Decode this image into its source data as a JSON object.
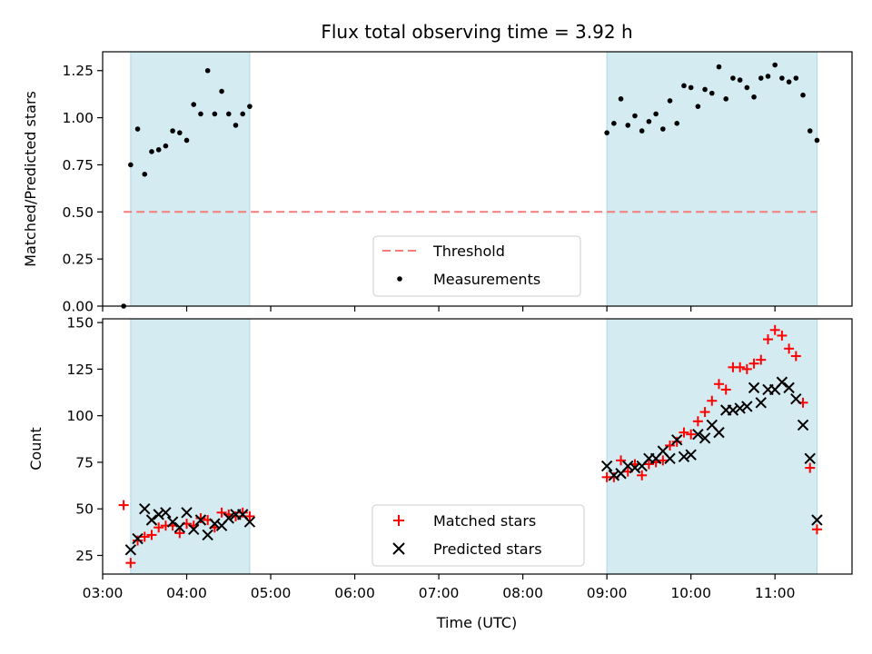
{
  "chart_data": [
    {
      "type": "scatter",
      "panel": "top",
      "title": "Flux total observing time = 3.92 h",
      "ylabel": "Matched/Predicted stars",
      "xlabel": "",
      "xlim": [
        "03:00",
        "11:55"
      ],
      "ylim": [
        0,
        1.35
      ],
      "yticks": [
        0,
        0.25,
        0.5,
        0.75,
        1.0,
        1.25
      ],
      "ytick_labels": [
        "0.00",
        "0.25",
        "0.50",
        "0.75",
        "1.00",
        "1.25"
      ],
      "shaded_intervals": [
        [
          "03:20",
          "04:45"
        ],
        [
          "09:00",
          "11:30"
        ]
      ],
      "shade_color": "#d4ebf1",
      "threshold": {
        "name": "Threshold",
        "value": 0.5,
        "from": "03:15",
        "to": "11:30",
        "color": "#f47c7c",
        "style": "dashed"
      },
      "series": [
        {
          "name": "Measurements",
          "marker": "dot",
          "color": "#000000",
          "points": [
            [
              "03:15",
              0.0
            ],
            [
              "03:20",
              0.75
            ],
            [
              "03:25",
              0.94
            ],
            [
              "03:30",
              0.7
            ],
            [
              "03:35",
              0.82
            ],
            [
              "03:40",
              0.83
            ],
            [
              "03:45",
              0.85
            ],
            [
              "03:50",
              0.93
            ],
            [
              "03:55",
              0.92
            ],
            [
              "04:00",
              0.88
            ],
            [
              "04:05",
              1.07
            ],
            [
              "04:10",
              1.02
            ],
            [
              "04:15",
              1.25
            ],
            [
              "04:20",
              1.02
            ],
            [
              "04:25",
              1.14
            ],
            [
              "04:30",
              1.02
            ],
            [
              "04:35",
              0.96
            ],
            [
              "04:40",
              1.02
            ],
            [
              "04:45",
              1.06
            ],
            [
              "09:00",
              0.92
            ],
            [
              "09:05",
              0.97
            ],
            [
              "09:10",
              1.1
            ],
            [
              "09:15",
              0.96
            ],
            [
              "09:20",
              1.01
            ],
            [
              "09:25",
              0.93
            ],
            [
              "09:30",
              0.98
            ],
            [
              "09:35",
              1.02
            ],
            [
              "09:40",
              0.94
            ],
            [
              "09:45",
              1.09
            ],
            [
              "09:50",
              0.97
            ],
            [
              "09:55",
              1.17
            ],
            [
              "10:00",
              1.16
            ],
            [
              "10:05",
              1.06
            ],
            [
              "10:10",
              1.15
            ],
            [
              "10:15",
              1.13
            ],
            [
              "10:20",
              1.27
            ],
            [
              "10:25",
              1.1
            ],
            [
              "10:30",
              1.21
            ],
            [
              "10:35",
              1.2
            ],
            [
              "10:40",
              1.16
            ],
            [
              "10:45",
              1.11
            ],
            [
              "10:50",
              1.21
            ],
            [
              "10:55",
              1.22
            ],
            [
              "11:00",
              1.28
            ],
            [
              "11:05",
              1.21
            ],
            [
              "11:10",
              1.19
            ],
            [
              "11:15",
              1.21
            ],
            [
              "11:20",
              1.12
            ],
            [
              "11:25",
              0.93
            ],
            [
              "11:30",
              0.88
            ]
          ]
        }
      ],
      "legend": {
        "placement": "lower-center",
        "entries": [
          "Threshold",
          "Measurements"
        ]
      }
    },
    {
      "type": "scatter",
      "panel": "bottom",
      "title": "",
      "ylabel": "Count",
      "xlabel": "Time (UTC)",
      "xlim": [
        "03:00",
        "11:55"
      ],
      "ylim": [
        15,
        152
      ],
      "yticks": [
        25,
        50,
        75,
        100,
        125,
        150
      ],
      "ytick_labels": [
        "25",
        "50",
        "75",
        "100",
        "125",
        "150"
      ],
      "xticks": [
        "03:00",
        "04:00",
        "05:00",
        "06:00",
        "07:00",
        "08:00",
        "09:00",
        "10:00",
        "11:00"
      ],
      "xtick_labels": [
        "03:00",
        "04:00",
        "05:00",
        "06:00",
        "07:00",
        "08:00",
        "09:00",
        "10:00",
        "11:00"
      ],
      "shaded_intervals": [
        [
          "03:20",
          "04:45"
        ],
        [
          "09:00",
          "11:30"
        ]
      ],
      "shade_color": "#d4ebf1",
      "series": [
        {
          "name": "Matched stars",
          "marker": "plus",
          "color": "#ff0000",
          "points": [
            [
              "03:15",
              52
            ],
            [
              "03:20",
              21
            ],
            [
              "03:25",
              33
            ],
            [
              "03:30",
              35
            ],
            [
              "03:35",
              36
            ],
            [
              "03:40",
              40
            ],
            [
              "03:45",
              41
            ],
            [
              "03:50",
              41
            ],
            [
              "03:55",
              37
            ],
            [
              "04:00",
              42
            ],
            [
              "04:05",
              41
            ],
            [
              "04:10",
              45
            ],
            [
              "04:15",
              44
            ],
            [
              "04:20",
              40
            ],
            [
              "04:25",
              48
            ],
            [
              "04:30",
              47
            ],
            [
              "04:35",
              46
            ],
            [
              "04:40",
              48
            ],
            [
              "04:45",
              46
            ],
            [
              "09:00",
              67
            ],
            [
              "09:05",
              67
            ],
            [
              "09:10",
              76
            ],
            [
              "09:15",
              70
            ],
            [
              "09:20",
              74
            ],
            [
              "09:25",
              68
            ],
            [
              "09:30",
              74
            ],
            [
              "09:35",
              75
            ],
            [
              "09:40",
              76
            ],
            [
              "09:45",
              84
            ],
            [
              "09:50",
              86
            ],
            [
              "09:55",
              91
            ],
            [
              "10:00",
              90
            ],
            [
              "10:05",
              97
            ],
            [
              "10:10",
              102
            ],
            [
              "10:15",
              108
            ],
            [
              "10:20",
              117
            ],
            [
              "10:25",
              114
            ],
            [
              "10:30",
              126
            ],
            [
              "10:35",
              126
            ],
            [
              "10:40",
              125
            ],
            [
              "10:45",
              128
            ],
            [
              "10:50",
              130
            ],
            [
              "10:55",
              141
            ],
            [
              "11:00",
              146
            ],
            [
              "11:05",
              143
            ],
            [
              "11:10",
              136
            ],
            [
              "11:15",
              132
            ],
            [
              "11:20",
              107
            ],
            [
              "11:25",
              72
            ],
            [
              "11:30",
              39
            ]
          ]
        },
        {
          "name": "Predicted stars",
          "marker": "x",
          "color": "#000000",
          "points": [
            [
              "03:20",
              28
            ],
            [
              "03:25",
              34
            ],
            [
              "03:30",
              50
            ],
            [
              "03:35",
              44
            ],
            [
              "03:40",
              47
            ],
            [
              "03:45",
              48
            ],
            [
              "03:50",
              43
            ],
            [
              "03:55",
              40
            ],
            [
              "04:00",
              48
            ],
            [
              "04:05",
              39
            ],
            [
              "04:10",
              44
            ],
            [
              "04:15",
              36
            ],
            [
              "04:20",
              42
            ],
            [
              "04:25",
              41
            ],
            [
              "04:30",
              45
            ],
            [
              "04:35",
              47
            ],
            [
              "04:40",
              47
            ],
            [
              "04:45",
              43
            ],
            [
              "09:00",
              73
            ],
            [
              "09:05",
              68
            ],
            [
              "09:10",
              69
            ],
            [
              "09:15",
              73
            ],
            [
              "09:20",
              72
            ],
            [
              "09:25",
              73
            ],
            [
              "09:30",
              77
            ],
            [
              "09:35",
              77
            ],
            [
              "09:40",
              81
            ],
            [
              "09:45",
              77
            ],
            [
              "09:50",
              87
            ],
            [
              "09:55",
              78
            ],
            [
              "10:00",
              79
            ],
            [
              "10:05",
              90
            ],
            [
              "10:10",
              88
            ],
            [
              "10:15",
              95
            ],
            [
              "10:20",
              91
            ],
            [
              "10:25",
              103
            ],
            [
              "10:30",
              103
            ],
            [
              "10:35",
              104
            ],
            [
              "10:40",
              105
            ],
            [
              "10:45",
              115
            ],
            [
              "10:50",
              107
            ],
            [
              "10:55",
              114
            ],
            [
              "11:00",
              114
            ],
            [
              "11:05",
              118
            ],
            [
              "11:10",
              115
            ],
            [
              "11:15",
              109
            ],
            [
              "11:20",
              95
            ],
            [
              "11:25",
              77
            ],
            [
              "11:30",
              44
            ]
          ]
        }
      ],
      "legend": {
        "placement": "lower-center",
        "entries": [
          "Matched stars",
          "Predicted stars"
        ]
      }
    }
  ]
}
